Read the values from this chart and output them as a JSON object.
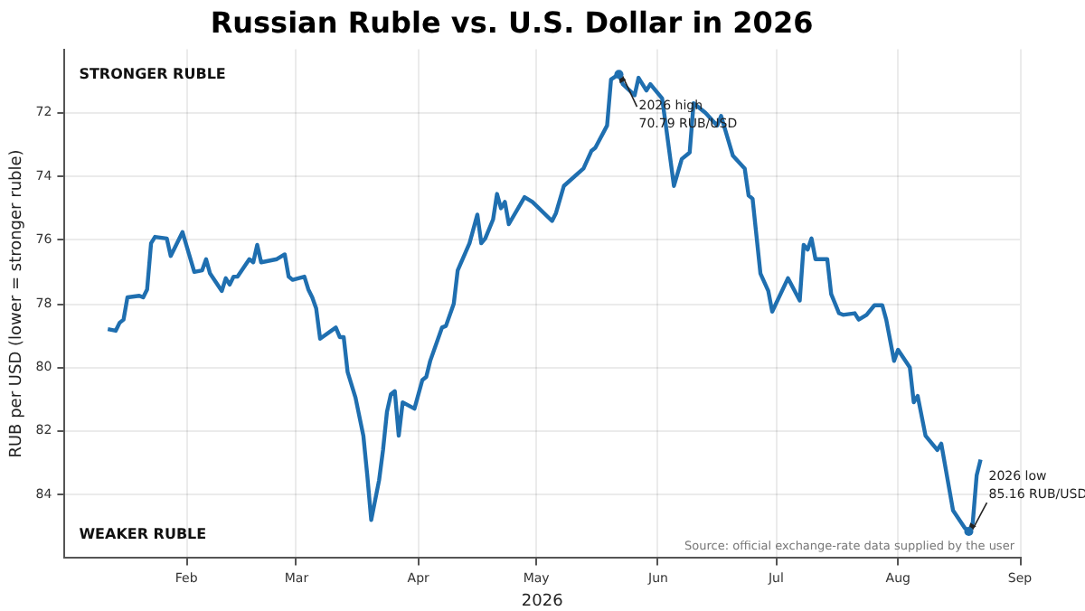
{
  "chart_data": {
    "type": "line",
    "title": "Russian Ruble vs. U.S. Dollar in 2026",
    "xlabel": "2026",
    "ylabel": "RUB per USD (lower = stronger ruble)",
    "x": [
      "2026-01-12",
      "2026-01-14",
      "2026-01-15",
      "2026-01-16",
      "2026-01-17",
      "2026-01-20",
      "2026-01-21",
      "2026-01-22",
      "2026-01-23",
      "2026-01-24",
      "2026-01-27",
      "2026-01-28",
      "2026-01-31",
      "2026-02-03",
      "2026-02-05",
      "2026-02-06",
      "2026-02-07",
      "2026-02-10",
      "2026-02-11",
      "2026-02-12",
      "2026-02-13",
      "2026-02-14",
      "2026-02-17",
      "2026-02-18",
      "2026-02-19",
      "2026-02-20",
      "2026-02-24",
      "2026-02-26",
      "2026-02-27",
      "2026-02-28",
      "2026-03-03",
      "2026-03-04",
      "2026-03-05",
      "2026-03-06",
      "2026-03-07",
      "2026-03-11",
      "2026-03-12",
      "2026-03-13",
      "2026-03-14",
      "2026-03-16",
      "2026-03-18",
      "2026-03-19",
      "2026-03-20",
      "2026-03-22",
      "2026-03-23",
      "2026-03-24",
      "2026-03-25",
      "2026-03-26",
      "2026-03-27",
      "2026-03-28",
      "2026-03-31",
      "2026-04-02",
      "2026-04-03",
      "2026-04-04",
      "2026-04-07",
      "2026-04-08",
      "2026-04-10",
      "2026-04-11",
      "2026-04-14",
      "2026-04-16",
      "2026-04-17",
      "2026-04-18",
      "2026-04-20",
      "2026-04-21",
      "2026-04-22",
      "2026-04-23",
      "2026-04-24",
      "2026-04-28",
      "2026-04-30",
      "2026-05-05",
      "2026-05-06",
      "2026-05-08",
      "2026-05-13",
      "2026-05-15",
      "2026-05-16",
      "2026-05-19",
      "2026-05-20",
      "2026-05-22",
      "2026-05-23",
      "2026-05-26",
      "2026-05-27",
      "2026-05-29",
      "2026-05-30",
      "2026-06-02",
      "2026-06-03",
      "2026-06-05",
      "2026-06-07",
      "2026-06-09",
      "2026-06-10",
      "2026-06-13",
      "2026-06-16",
      "2026-06-17",
      "2026-06-20",
      "2026-06-23",
      "2026-06-24",
      "2026-06-25",
      "2026-06-27",
      "2026-06-29",
      "2026-06-30",
      "2026-07-04",
      "2026-07-07",
      "2026-07-08",
      "2026-07-09",
      "2026-07-10",
      "2026-07-11",
      "2026-07-14",
      "2026-07-15",
      "2026-07-17",
      "2026-07-18",
      "2026-07-21",
      "2026-07-22",
      "2026-07-24",
      "2026-07-26",
      "2026-07-28",
      "2026-07-29",
      "2026-07-31",
      "2026-08-01",
      "2026-08-04",
      "2026-08-05",
      "2026-08-06",
      "2026-08-08",
      "2026-08-11",
      "2026-08-12",
      "2026-08-15",
      "2026-08-18",
      "2026-08-19",
      "2026-08-20",
      "2026-08-21",
      "2026-08-22"
    ],
    "series": [
      {
        "color": "#1f6fb0",
        "values": [
          78.8,
          78.85,
          78.6,
          78.5,
          77.8,
          77.75,
          77.8,
          77.55,
          76.1,
          75.9,
          75.95,
          76.5,
          75.75,
          77.0,
          76.95,
          76.6,
          77.05,
          77.6,
          77.2,
          77.4,
          77.15,
          77.15,
          76.6,
          76.7,
          76.15,
          76.7,
          76.6,
          76.45,
          77.15,
          77.25,
          77.15,
          77.55,
          77.8,
          78.15,
          79.1,
          78.75,
          79.05,
          79.05,
          80.15,
          80.95,
          82.15,
          83.4,
          84.8,
          83.55,
          82.6,
          81.4,
          80.85,
          80.75,
          82.15,
          81.1,
          81.3,
          80.4,
          80.3,
          79.8,
          78.75,
          78.7,
          78.0,
          76.95,
          76.1,
          75.2,
          76.1,
          75.95,
          75.35,
          74.55,
          75.0,
          74.8,
          75.5,
          74.65,
          74.8,
          75.4,
          75.15,
          74.3,
          73.75,
          73.2,
          73.1,
          72.4,
          70.95,
          70.79,
          71.1,
          71.45,
          70.9,
          71.3,
          71.1,
          71.55,
          72.45,
          74.3,
          73.45,
          73.25,
          71.7,
          72.0,
          72.4,
          72.1,
          73.35,
          73.75,
          74.6,
          74.7,
          77.05,
          77.6,
          78.25,
          77.2,
          77.9,
          76.15,
          76.3,
          75.95,
          76.6,
          76.6,
          77.7,
          78.3,
          78.35,
          78.3,
          78.5,
          78.35,
          78.05,
          78.05,
          78.5,
          79.8,
          79.45,
          80.0,
          81.1,
          80.9,
          82.15,
          82.6,
          82.4,
          84.5,
          85.05,
          85.16,
          84.9,
          83.4,
          82.9
        ]
      }
    ],
    "xlim": [
      "2026-01-01",
      "2026-09-01"
    ],
    "xticks": [
      {
        "value": "2026-02-01",
        "label": "Feb"
      },
      {
        "value": "2026-03-01",
        "label": "Mar"
      },
      {
        "value": "2026-04-01",
        "label": "Apr"
      },
      {
        "value": "2026-05-01",
        "label": "May"
      },
      {
        "value": "2026-06-01",
        "label": "Jun"
      },
      {
        "value": "2026-07-01",
        "label": "Jul"
      },
      {
        "value": "2026-08-01",
        "label": "Aug"
      },
      {
        "value": "2026-09-01",
        "label": "Sep"
      }
    ],
    "ylim": [
      86,
      70
    ],
    "yticks": [
      72,
      74,
      76,
      78,
      80,
      82,
      84
    ],
    "grid": true,
    "legend": false,
    "marker": "none",
    "line_style": "solid",
    "annotations": [
      "STRONGER RUBLE",
      "WEAKER RUBLE",
      "Source: official exchange-rate data supplied by the user",
      {
        "text": "2026 high\n70.79 RUB/USD",
        "x": "2026-05-22",
        "y": 70.79
      },
      {
        "text": "2026 low\n85.16 RUB/USD",
        "x": "2026-08-19",
        "y": 85.16
      }
    ]
  }
}
